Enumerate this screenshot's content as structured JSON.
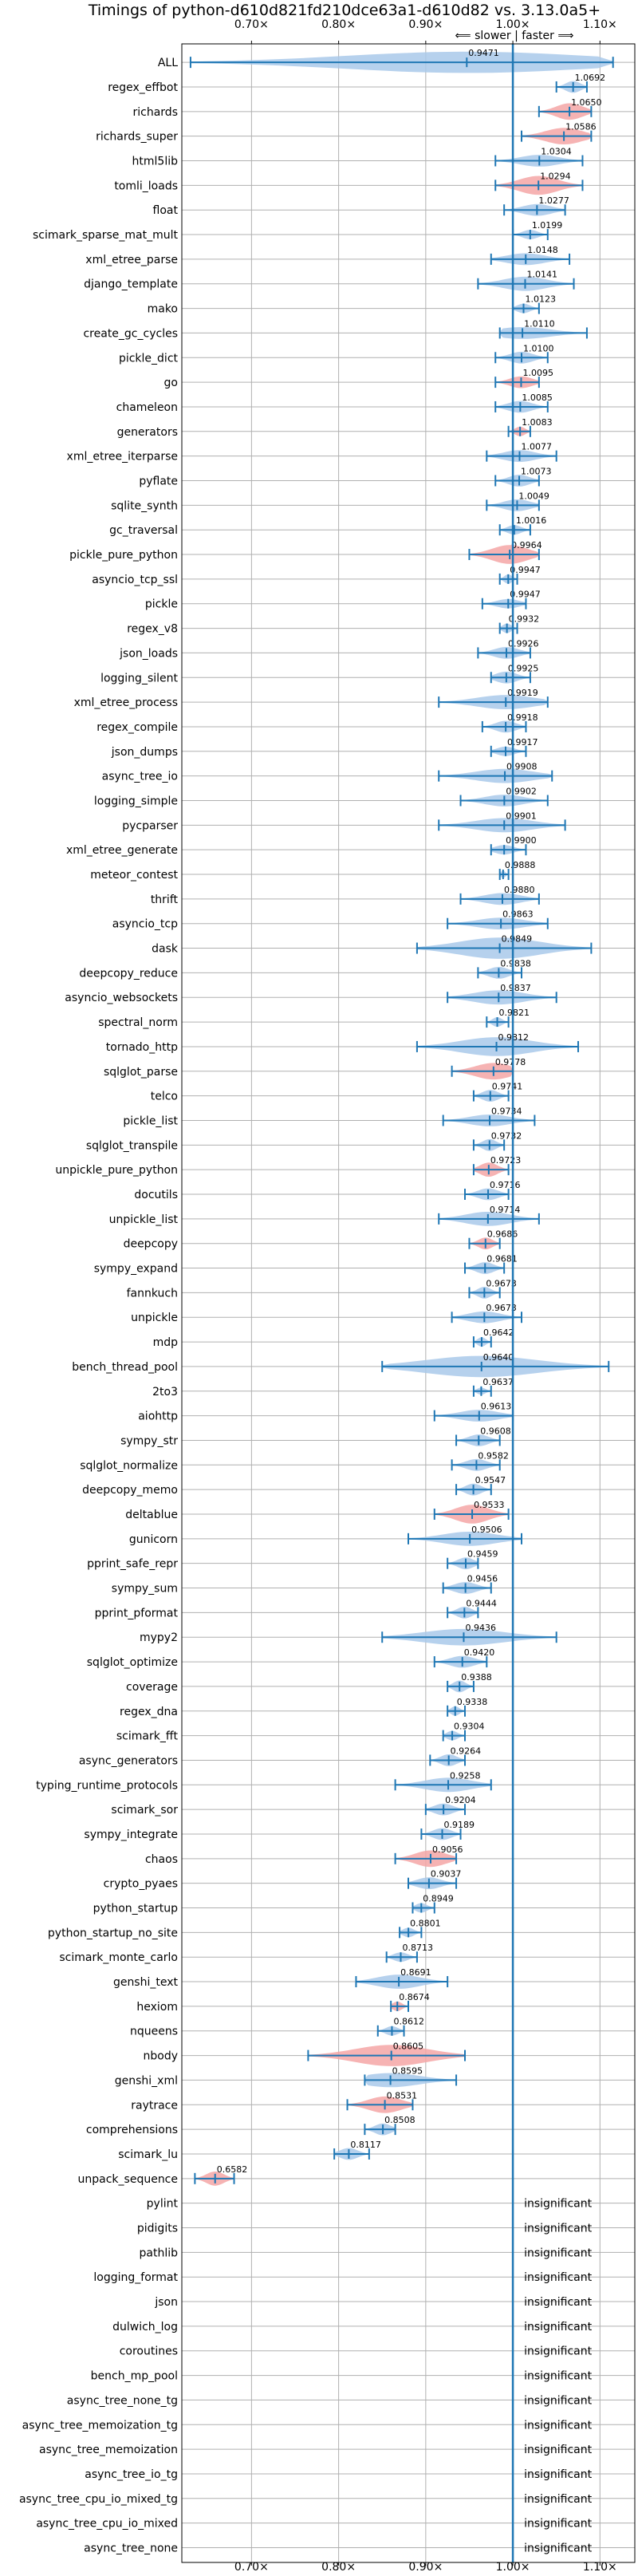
{
  "chart_data": {
    "type": "violin",
    "title": "Timings of python-d610d821fd210dce63a1-d610d82 vs. 3.13.0a5+",
    "direction_note": "⟸ slower | faster ⟹",
    "xlabel": "",
    "ylabel": "",
    "xlim": [
      0.62,
      1.14
    ],
    "x_ticks": [
      0.7,
      0.8,
      0.9,
      1.0,
      1.1
    ],
    "x_tick_labels": [
      "0.70×",
      "0.80×",
      "0.90×",
      "1.00×",
      "1.10×"
    ],
    "reference_line": 1.0,
    "grid": true,
    "colors": {
      "faster": "#a9c9ea",
      "slower": "#f4a6a6",
      "whisker": "#1f77b4",
      "reference": "#1f77b4"
    },
    "insignificant_label": "insignificant",
    "benchmarks": [
      {
        "name": "ALL",
        "value": 0.9471,
        "label": "0.9471",
        "min": 0.63,
        "max": 1.115,
        "width": 0.9,
        "color": "faster"
      },
      {
        "name": "regex_effbot",
        "value": 1.0692,
        "label": "1.0692",
        "min": 1.05,
        "max": 1.085,
        "width": 0.5,
        "color": "faster"
      },
      {
        "name": "richards",
        "value": 1.065,
        "label": "1.0650",
        "min": 1.03,
        "max": 1.09,
        "width": 0.7,
        "color": "slower"
      },
      {
        "name": "richards_super",
        "value": 1.0586,
        "label": "1.0586",
        "min": 1.01,
        "max": 1.09,
        "width": 0.7,
        "color": "slower"
      },
      {
        "name": "html5lib",
        "value": 1.0304,
        "label": "1.0304",
        "min": 0.98,
        "max": 1.08,
        "width": 0.5,
        "color": "faster"
      },
      {
        "name": "tomli_loads",
        "value": 1.0294,
        "label": "1.0294",
        "min": 0.98,
        "max": 1.08,
        "width": 0.8,
        "color": "slower"
      },
      {
        "name": "float",
        "value": 1.0277,
        "label": "1.0277",
        "min": 0.99,
        "max": 1.06,
        "width": 0.5,
        "color": "faster"
      },
      {
        "name": "scimark_sparse_mat_mult",
        "value": 1.0199,
        "label": "1.0199",
        "min": 1.0,
        "max": 1.04,
        "width": 0.4,
        "color": "faster"
      },
      {
        "name": "xml_etree_parse",
        "value": 1.0148,
        "label": "1.0148",
        "min": 0.975,
        "max": 1.065,
        "width": 0.5,
        "color": "faster"
      },
      {
        "name": "django_template",
        "value": 1.0141,
        "label": "1.0141",
        "min": 0.96,
        "max": 1.07,
        "width": 0.6,
        "color": "faster"
      },
      {
        "name": "mako",
        "value": 1.0123,
        "label": "1.0123",
        "min": 1.0,
        "max": 1.03,
        "width": 0.4,
        "color": "faster"
      },
      {
        "name": "create_gc_cycles",
        "value": 1.011,
        "label": "1.0110",
        "min": 0.985,
        "max": 1.085,
        "width": 0.5,
        "color": "faster"
      },
      {
        "name": "pickle_dict",
        "value": 1.01,
        "label": "1.0100",
        "min": 0.98,
        "max": 1.04,
        "width": 0.5,
        "color": "faster"
      },
      {
        "name": "go",
        "value": 1.0095,
        "label": "1.0095",
        "min": 0.98,
        "max": 1.03,
        "width": 0.5,
        "color": "slower"
      },
      {
        "name": "chameleon",
        "value": 1.0085,
        "label": "1.0085",
        "min": 0.98,
        "max": 1.04,
        "width": 0.5,
        "color": "faster"
      },
      {
        "name": "generators",
        "value": 1.0083,
        "label": "1.0083",
        "min": 0.995,
        "max": 1.02,
        "width": 0.4,
        "color": "slower"
      },
      {
        "name": "xml_etree_iterparse",
        "value": 1.0077,
        "label": "1.0077",
        "min": 0.97,
        "max": 1.05,
        "width": 0.5,
        "color": "faster"
      },
      {
        "name": "pyflate",
        "value": 1.0073,
        "label": "1.0073",
        "min": 0.98,
        "max": 1.03,
        "width": 0.5,
        "color": "faster"
      },
      {
        "name": "sqlite_synth",
        "value": 1.0049,
        "label": "1.0049",
        "min": 0.97,
        "max": 1.03,
        "width": 0.5,
        "color": "faster"
      },
      {
        "name": "gc_traversal",
        "value": 1.0016,
        "label": "1.0016",
        "min": 0.985,
        "max": 1.02,
        "width": 0.4,
        "color": "faster"
      },
      {
        "name": "pickle_pure_python",
        "value": 0.9964,
        "label": "0.9964",
        "min": 0.95,
        "max": 1.03,
        "width": 0.8,
        "color": "slower"
      },
      {
        "name": "asyncio_tcp_ssl",
        "value": 0.9947,
        "label": "0.9947",
        "min": 0.985,
        "max": 1.005,
        "width": 0.4,
        "color": "faster"
      },
      {
        "name": "pickle",
        "value": 0.9947,
        "label": "0.9947",
        "min": 0.965,
        "max": 1.015,
        "width": 0.4,
        "color": "faster"
      },
      {
        "name": "regex_v8",
        "value": 0.9932,
        "label": "0.9932",
        "min": 0.985,
        "max": 1.005,
        "width": 0.4,
        "color": "faster"
      },
      {
        "name": "json_loads",
        "value": 0.9926,
        "label": "0.9926",
        "min": 0.96,
        "max": 1.02,
        "width": 0.5,
        "color": "faster"
      },
      {
        "name": "logging_silent",
        "value": 0.9925,
        "label": "0.9925",
        "min": 0.975,
        "max": 1.02,
        "width": 0.5,
        "color": "faster"
      },
      {
        "name": "xml_etree_process",
        "value": 0.9919,
        "label": "0.9919",
        "min": 0.915,
        "max": 1.04,
        "width": 0.6,
        "color": "faster"
      },
      {
        "name": "regex_compile",
        "value": 0.9918,
        "label": "0.9918",
        "min": 0.965,
        "max": 1.015,
        "width": 0.5,
        "color": "faster"
      },
      {
        "name": "json_dumps",
        "value": 0.9917,
        "label": "0.9917",
        "min": 0.975,
        "max": 1.015,
        "width": 0.4,
        "color": "faster"
      },
      {
        "name": "async_tree_io",
        "value": 0.9908,
        "label": "0.9908",
        "min": 0.915,
        "max": 1.045,
        "width": 0.6,
        "color": "faster"
      },
      {
        "name": "logging_simple",
        "value": 0.9902,
        "label": "0.9902",
        "min": 0.94,
        "max": 1.04,
        "width": 0.5,
        "color": "faster"
      },
      {
        "name": "pycparser",
        "value": 0.9901,
        "label": "0.9901",
        "min": 0.915,
        "max": 1.06,
        "width": 0.6,
        "color": "faster"
      },
      {
        "name": "xml_etree_generate",
        "value": 0.99,
        "label": "0.9900",
        "min": 0.975,
        "max": 1.015,
        "width": 0.4,
        "color": "faster"
      },
      {
        "name": "meteor_contest",
        "value": 0.9888,
        "label": "0.9888",
        "min": 0.985,
        "max": 0.995,
        "width": 0.3,
        "color": "faster"
      },
      {
        "name": "thrift",
        "value": 0.988,
        "label": "0.9880",
        "min": 0.94,
        "max": 1.03,
        "width": 0.5,
        "color": "faster"
      },
      {
        "name": "asyncio_tcp",
        "value": 0.9863,
        "label": "0.9863",
        "min": 0.925,
        "max": 1.04,
        "width": 0.5,
        "color": "faster"
      },
      {
        "name": "dask",
        "value": 0.9849,
        "label": "0.9849",
        "min": 0.89,
        "max": 1.09,
        "width": 0.9,
        "color": "faster"
      },
      {
        "name": "deepcopy_reduce",
        "value": 0.9838,
        "label": "0.9838",
        "min": 0.96,
        "max": 1.01,
        "width": 0.5,
        "color": "faster"
      },
      {
        "name": "asyncio_websockets",
        "value": 0.9837,
        "label": "0.9837",
        "min": 0.925,
        "max": 1.05,
        "width": 0.6,
        "color": "faster"
      },
      {
        "name": "spectral_norm",
        "value": 0.9821,
        "label": "0.9821",
        "min": 0.97,
        "max": 0.995,
        "width": 0.4,
        "color": "faster"
      },
      {
        "name": "tornado_http",
        "value": 0.9812,
        "label": "0.9812",
        "min": 0.89,
        "max": 1.075,
        "width": 0.8,
        "color": "faster"
      },
      {
        "name": "sqlglot_parse",
        "value": 0.9778,
        "label": "0.9778",
        "min": 0.93,
        "max": 1.0,
        "width": 0.7,
        "color": "slower"
      },
      {
        "name": "telco",
        "value": 0.9741,
        "label": "0.9741",
        "min": 0.955,
        "max": 0.995,
        "width": 0.5,
        "color": "faster"
      },
      {
        "name": "pickle_list",
        "value": 0.9734,
        "label": "0.9734",
        "min": 0.92,
        "max": 1.025,
        "width": 0.5,
        "color": "faster"
      },
      {
        "name": "sqlglot_transpile",
        "value": 0.9732,
        "label": "0.9732",
        "min": 0.955,
        "max": 0.99,
        "width": 0.5,
        "color": "faster"
      },
      {
        "name": "unpickle_pure_python",
        "value": 0.9723,
        "label": "0.9723",
        "min": 0.955,
        "max": 0.995,
        "width": 0.6,
        "color": "slower"
      },
      {
        "name": "docutils",
        "value": 0.9716,
        "label": "0.9716",
        "min": 0.945,
        "max": 0.995,
        "width": 0.5,
        "color": "faster"
      },
      {
        "name": "unpickle_list",
        "value": 0.9714,
        "label": "0.9714",
        "min": 0.915,
        "max": 1.03,
        "width": 0.6,
        "color": "faster"
      },
      {
        "name": "deepcopy",
        "value": 0.9686,
        "label": "0.9686",
        "min": 0.95,
        "max": 0.985,
        "width": 0.5,
        "color": "slower"
      },
      {
        "name": "sympy_expand",
        "value": 0.9681,
        "label": "0.9681",
        "min": 0.945,
        "max": 0.99,
        "width": 0.5,
        "color": "faster"
      },
      {
        "name": "fannkuch",
        "value": 0.9673,
        "label": "0.9673",
        "min": 0.95,
        "max": 0.985,
        "width": 0.5,
        "color": "faster"
      },
      {
        "name": "unpickle",
        "value": 0.9673,
        "label": "0.9673",
        "min": 0.93,
        "max": 1.01,
        "width": 0.5,
        "color": "faster"
      },
      {
        "name": "mdp",
        "value": 0.9642,
        "label": "0.9642",
        "min": 0.955,
        "max": 0.975,
        "width": 0.4,
        "color": "faster"
      },
      {
        "name": "bench_thread_pool",
        "value": 0.964,
        "label": "0.9640",
        "min": 0.85,
        "max": 1.11,
        "width": 0.9,
        "color": "faster"
      },
      {
        "name": "2to3",
        "value": 0.9637,
        "label": "0.9637",
        "min": 0.955,
        "max": 0.975,
        "width": 0.3,
        "color": "faster"
      },
      {
        "name": "aiohttp",
        "value": 0.9613,
        "label": "0.9613",
        "min": 0.91,
        "max": 1.0,
        "width": 0.5,
        "color": "faster"
      },
      {
        "name": "sympy_str",
        "value": 0.9608,
        "label": "0.9608",
        "min": 0.935,
        "max": 0.985,
        "width": 0.5,
        "color": "faster"
      },
      {
        "name": "sqlglot_normalize",
        "value": 0.9582,
        "label": "0.9582",
        "min": 0.93,
        "max": 0.985,
        "width": 0.5,
        "color": "faster"
      },
      {
        "name": "deepcopy_memo",
        "value": 0.9547,
        "label": "0.9547",
        "min": 0.935,
        "max": 0.975,
        "width": 0.5,
        "color": "faster"
      },
      {
        "name": "deltablue",
        "value": 0.9533,
        "label": "0.9533",
        "min": 0.91,
        "max": 0.995,
        "width": 0.8,
        "color": "slower"
      },
      {
        "name": "gunicorn",
        "value": 0.9506,
        "label": "0.9506",
        "min": 0.88,
        "max": 1.01,
        "width": 0.6,
        "color": "faster"
      },
      {
        "name": "pprint_safe_repr",
        "value": 0.9459,
        "label": "0.9459",
        "min": 0.925,
        "max": 0.96,
        "width": 0.5,
        "color": "faster"
      },
      {
        "name": "sympy_sum",
        "value": 0.9456,
        "label": "0.9456",
        "min": 0.92,
        "max": 0.975,
        "width": 0.5,
        "color": "faster"
      },
      {
        "name": "pprint_pformat",
        "value": 0.9444,
        "label": "0.9444",
        "min": 0.925,
        "max": 0.96,
        "width": 0.5,
        "color": "faster"
      },
      {
        "name": "mypy2",
        "value": 0.9436,
        "label": "0.9436",
        "min": 0.85,
        "max": 1.05,
        "width": 0.7,
        "color": "faster"
      },
      {
        "name": "sqlglot_optimize",
        "value": 0.942,
        "label": "0.9420",
        "min": 0.91,
        "max": 0.97,
        "width": 0.5,
        "color": "faster"
      },
      {
        "name": "coverage",
        "value": 0.9388,
        "label": "0.9388",
        "min": 0.925,
        "max": 0.955,
        "width": 0.5,
        "color": "faster"
      },
      {
        "name": "regex_dna",
        "value": 0.9338,
        "label": "0.9338",
        "min": 0.925,
        "max": 0.945,
        "width": 0.4,
        "color": "faster"
      },
      {
        "name": "scimark_fft",
        "value": 0.9304,
        "label": "0.9304",
        "min": 0.92,
        "max": 0.945,
        "width": 0.4,
        "color": "faster"
      },
      {
        "name": "async_generators",
        "value": 0.9264,
        "label": "0.9264",
        "min": 0.905,
        "max": 0.945,
        "width": 0.5,
        "color": "faster"
      },
      {
        "name": "typing_runtime_protocols",
        "value": 0.9258,
        "label": "0.9258",
        "min": 0.865,
        "max": 0.975,
        "width": 0.6,
        "color": "faster"
      },
      {
        "name": "scimark_sor",
        "value": 0.9204,
        "label": "0.9204",
        "min": 0.9,
        "max": 0.945,
        "width": 0.5,
        "color": "faster"
      },
      {
        "name": "sympy_integrate",
        "value": 0.9189,
        "label": "0.9189",
        "min": 0.895,
        "max": 0.94,
        "width": 0.5,
        "color": "faster"
      },
      {
        "name": "chaos",
        "value": 0.9056,
        "label": "0.9056",
        "min": 0.865,
        "max": 0.935,
        "width": 0.7,
        "color": "slower"
      },
      {
        "name": "crypto_pyaes",
        "value": 0.9037,
        "label": "0.9037",
        "min": 0.88,
        "max": 0.935,
        "width": 0.5,
        "color": "faster"
      },
      {
        "name": "python_startup",
        "value": 0.8949,
        "label": "0.8949",
        "min": 0.885,
        "max": 0.91,
        "width": 0.4,
        "color": "faster"
      },
      {
        "name": "python_startup_no_site",
        "value": 0.8801,
        "label": "0.8801",
        "min": 0.87,
        "max": 0.895,
        "width": 0.4,
        "color": "faster"
      },
      {
        "name": "scimark_monte_carlo",
        "value": 0.8713,
        "label": "0.8713",
        "min": 0.855,
        "max": 0.89,
        "width": 0.4,
        "color": "faster"
      },
      {
        "name": "genshi_text",
        "value": 0.8691,
        "label": "0.8691",
        "min": 0.82,
        "max": 0.925,
        "width": 0.6,
        "color": "faster"
      },
      {
        "name": "hexiom",
        "value": 0.8674,
        "label": "0.8674",
        "min": 0.86,
        "max": 0.88,
        "width": 0.4,
        "color": "slower"
      },
      {
        "name": "nqueens",
        "value": 0.8612,
        "label": "0.8612",
        "min": 0.845,
        "max": 0.875,
        "width": 0.4,
        "color": "faster"
      },
      {
        "name": "nbody",
        "value": 0.8605,
        "label": "0.8605",
        "min": 0.765,
        "max": 0.945,
        "width": 0.9,
        "color": "slower"
      },
      {
        "name": "genshi_xml",
        "value": 0.8595,
        "label": "0.8595",
        "min": 0.83,
        "max": 0.935,
        "width": 0.6,
        "color": "faster"
      },
      {
        "name": "raytrace",
        "value": 0.8531,
        "label": "0.8531",
        "min": 0.81,
        "max": 0.885,
        "width": 0.7,
        "color": "slower"
      },
      {
        "name": "comprehensions",
        "value": 0.8508,
        "label": "0.8508",
        "min": 0.83,
        "max": 0.865,
        "width": 0.5,
        "color": "faster"
      },
      {
        "name": "scimark_lu",
        "value": 0.8117,
        "label": "0.8117",
        "min": 0.795,
        "max": 0.835,
        "width": 0.5,
        "color": "faster"
      },
      {
        "name": "unpack_sequence",
        "value": 0.6582,
        "label": "0.6582",
        "min": 0.635,
        "max": 0.68,
        "width": 0.6,
        "color": "slower"
      },
      {
        "name": "pylint",
        "insignificant": true
      },
      {
        "name": "pidigits",
        "insignificant": true
      },
      {
        "name": "pathlib",
        "insignificant": true
      },
      {
        "name": "logging_format",
        "insignificant": true
      },
      {
        "name": "json",
        "insignificant": true
      },
      {
        "name": "dulwich_log",
        "insignificant": true
      },
      {
        "name": "coroutines",
        "insignificant": true
      },
      {
        "name": "bench_mp_pool",
        "insignificant": true
      },
      {
        "name": "async_tree_none_tg",
        "insignificant": true
      },
      {
        "name": "async_tree_memoization_tg",
        "insignificant": true
      },
      {
        "name": "async_tree_memoization",
        "insignificant": true
      },
      {
        "name": "async_tree_io_tg",
        "insignificant": true
      },
      {
        "name": "async_tree_cpu_io_mixed_tg",
        "insignificant": true
      },
      {
        "name": "async_tree_cpu_io_mixed",
        "insignificant": true
      },
      {
        "name": "async_tree_none",
        "insignificant": true
      }
    ]
  }
}
